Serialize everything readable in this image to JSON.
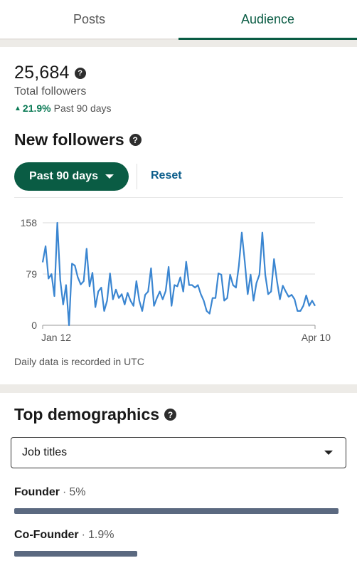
{
  "tabs": [
    {
      "label": "Posts",
      "active": false
    },
    {
      "label": "Audience",
      "active": true
    }
  ],
  "summary": {
    "total": "25,684",
    "label": "Total followers",
    "change": "21.9%",
    "period": "Past 90 days"
  },
  "new_followers": {
    "title": "New followers",
    "filter": "Past 90 days",
    "reset": "Reset",
    "note": "Daily data is recorded in UTC"
  },
  "chart_data": {
    "type": "line",
    "y_ticks": [
      "158",
      "79",
      "0"
    ],
    "ylim": [
      0,
      158
    ],
    "x_labels": [
      "Jan 12",
      "Apr 10"
    ],
    "grid": true,
    "color": "#3b86d1",
    "values": [
      97,
      122,
      72,
      79,
      45,
      158,
      70,
      32,
      62,
      0,
      95,
      92,
      74,
      63,
      68,
      118,
      60,
      81,
      28,
      52,
      58,
      22,
      38,
      80,
      40,
      55,
      42,
      48,
      32,
      50,
      38,
      30,
      68,
      38,
      22,
      47,
      52,
      88,
      30,
      42,
      52,
      40,
      53,
      90,
      30,
      62,
      60,
      74,
      52,
      98,
      62,
      62,
      58,
      62,
      48,
      38,
      22,
      18,
      42,
      42,
      80,
      78,
      38,
      42,
      78,
      62,
      58,
      92,
      143,
      98,
      48,
      78,
      38,
      65,
      78,
      143,
      78,
      48,
      52,
      102,
      68,
      40,
      61,
      52,
      44,
      47,
      40,
      22,
      22,
      30,
      46,
      30,
      38,
      30
    ]
  },
  "demographics": {
    "title": "Top demographics",
    "select_value": "Job titles",
    "items": [
      {
        "label": "Founder",
        "pct": "5%",
        "fraction": 1.0
      },
      {
        "label": "Co-Founder",
        "pct": "1.9%",
        "fraction": 0.38
      }
    ]
  }
}
